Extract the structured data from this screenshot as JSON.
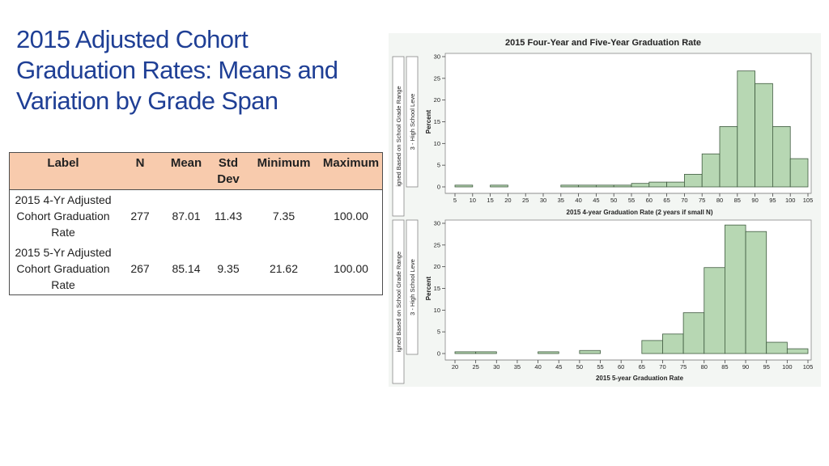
{
  "slide": {
    "title_lines": [
      "2015 Adjusted Cohort",
      "Graduation Rates: Means and",
      "Variation by Grade Span"
    ]
  },
  "table": {
    "headers": [
      "Label",
      "N",
      "Mean",
      "Std Dev",
      "Minimum",
      "Maximum"
    ],
    "rows": [
      {
        "label": "2015 4-Yr Adjusted Cohort Graduation Rate",
        "n": "277",
        "mean": "87.01",
        "std": "11.43",
        "min": "7.35",
        "max": "100.00"
      },
      {
        "label": "2015 5-Yr Adjusted Cohort Graduation Rate",
        "n": "267",
        "mean": "85.14",
        "std": "9.35",
        "min": "21.62",
        "max": "100.00"
      }
    ]
  },
  "figure": {
    "title": "2015 Four-Year and Five-Year Graduation Rate",
    "outer_strip_label": "igned Based on School Grade Range",
    "inner_strip_label": "3 - High School Leve",
    "bar_color": "#b7d7b3",
    "bar_outline": "#3f5a3f"
  },
  "chart_data": [
    {
      "type": "bar",
      "title": "",
      "xlabel": "2015 4-year Graduation Rate (2 years if small N)",
      "ylabel": "Percent",
      "x_ticks": [
        5,
        10,
        15,
        20,
        25,
        30,
        35,
        40,
        45,
        50,
        55,
        60,
        65,
        70,
        75,
        80,
        85,
        90,
        95,
        100,
        105
      ],
      "y_ticks": [
        0,
        5,
        10,
        15,
        20,
        25,
        30
      ],
      "ylim": [
        0,
        30
      ],
      "xlim": [
        5,
        105
      ],
      "bin_width": 5,
      "bins": [
        5,
        15,
        35,
        40,
        45,
        50,
        55,
        60,
        65,
        70,
        75,
        80,
        85,
        90,
        95,
        100
      ],
      "values": [
        0.4,
        0.4,
        0.4,
        0.4,
        0.4,
        0.4,
        0.8,
        1.1,
        1.1,
        2.9,
        7.6,
        13.9,
        26.7,
        23.8,
        13.9,
        6.5
      ]
    },
    {
      "type": "bar",
      "title": "",
      "xlabel": "2015 5-year Graduation Rate",
      "ylabel": "Percent",
      "x_ticks": [
        20,
        25,
        30,
        35,
        40,
        45,
        50,
        55,
        60,
        65,
        70,
        75,
        80,
        85,
        90,
        95,
        100,
        105
      ],
      "y_ticks": [
        0,
        5,
        10,
        15,
        20,
        25,
        30
      ],
      "ylim": [
        0,
        30
      ],
      "xlim": [
        20,
        105
      ],
      "bin_width": 5,
      "bins": [
        20,
        25,
        40,
        50,
        65,
        70,
        75,
        80,
        85,
        90,
        95,
        100
      ],
      "values": [
        0.4,
        0.4,
        0.4,
        0.7,
        3.0,
        4.5,
        9.4,
        19.8,
        29.6,
        28.1,
        2.6,
        1.1
      ]
    }
  ]
}
